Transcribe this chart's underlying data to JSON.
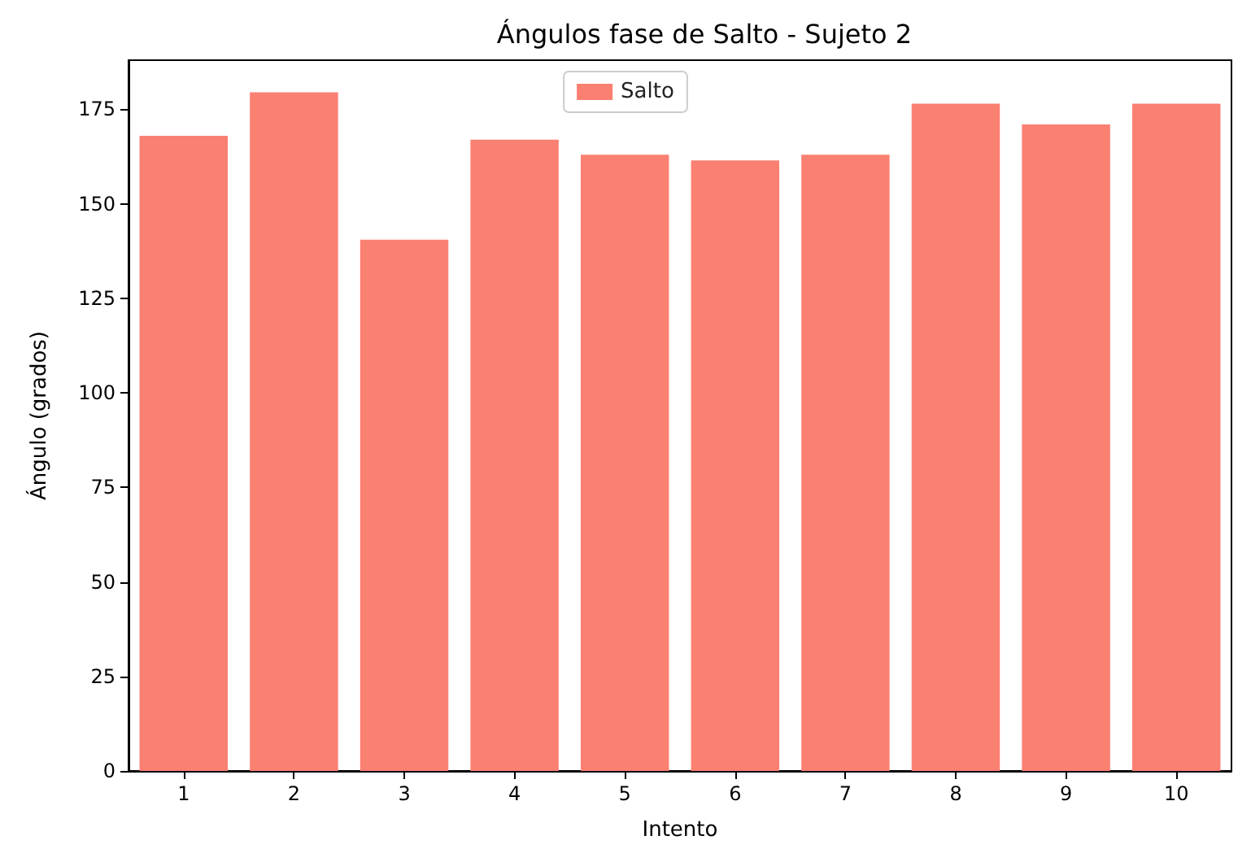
{
  "chart_data": {
    "type": "bar",
    "title": "Ángulos fase de Salto - Sujeto 2",
    "xlabel": "Intento",
    "ylabel": "Ángulo (grados)",
    "categories": [
      "1",
      "2",
      "3",
      "4",
      "5",
      "6",
      "7",
      "8",
      "9",
      "10"
    ],
    "series": [
      {
        "name": "Salto",
        "color": "#fa8072",
        "values": [
          168,
          179.5,
          140.5,
          167,
          163,
          161.5,
          163,
          176.5,
          171,
          176.5
        ]
      }
    ],
    "ylim": [
      0,
      188
    ],
    "yticks": [
      0,
      25,
      50,
      75,
      100,
      125,
      150,
      175
    ],
    "grid": false,
    "legend": "top"
  }
}
